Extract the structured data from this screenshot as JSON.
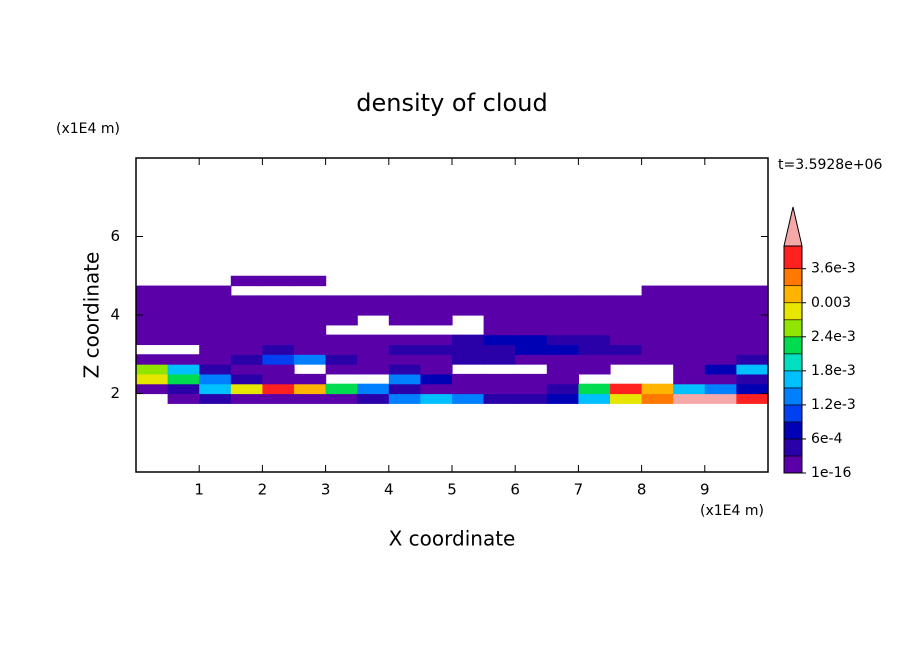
{
  "chart_data": {
    "type": "contour",
    "title": "density of cloud",
    "xlabel": "X coordinate",
    "ylabel": "Z coordinate",
    "xunit": "(x1E4 m)",
    "yunit": "(x1E4 m)",
    "annotation": "t=3.5928e+06",
    "xlim": [
      0,
      10
    ],
    "ylim": [
      0,
      8
    ],
    "xticks": [
      1,
      2,
      3,
      4,
      5,
      6,
      7,
      8,
      9
    ],
    "yticks": [
      2,
      4,
      6
    ],
    "x": [
      0.25,
      0.75,
      1.25,
      1.75,
      2.25,
      2.75,
      3.25,
      3.75,
      4.25,
      4.75,
      5.25,
      5.75,
      6.25,
      6.75,
      7.25,
      7.75,
      8.25,
      8.75,
      9.25,
      9.75
    ],
    "y": [
      1.875,
      2.125,
      2.375,
      2.625,
      2.875,
      3.125,
      3.375,
      3.625,
      3.875,
      4.125,
      4.375,
      4.625,
      4.875
    ],
    "z": [
      [
        0,
        0.0001,
        0.0004,
        0.0001,
        0.0001,
        0.0001,
        0.0001,
        0.0004,
        0.0013,
        0.0016,
        0.0013,
        0.0004,
        0.0004,
        0.0007,
        0.0016,
        0.0028,
        0.0034,
        0.0045,
        0.0045,
        0.0037
      ],
      [
        0.0001,
        0.0004,
        0.0016,
        0.0028,
        0.0037,
        0.0031,
        0.0022,
        0.0013,
        0.0004,
        0.0001,
        0.0001,
        0.0001,
        0.0001,
        0.0004,
        0.0022,
        0.0037,
        0.0031,
        0.0016,
        0.0013,
        0.0007
      ],
      [
        0.0028,
        0.0022,
        0.0013,
        0.0004,
        0.0001,
        0.0001,
        0,
        0,
        0.0013,
        0.0007,
        0.0001,
        0.0001,
        0.0001,
        0.0001,
        0,
        0,
        0,
        0.0001,
        0.0001,
        0.0004
      ],
      [
        0.0025,
        0.0016,
        0.0004,
        0.0001,
        0.0001,
        0,
        0.0001,
        0.0001,
        0.0004,
        0.0001,
        0,
        0,
        0,
        0.0001,
        0.0001,
        0,
        0,
        0.0001,
        0.0007,
        0.0016
      ],
      [
        0.0001,
        0.0001,
        0.0001,
        0.0004,
        0.001,
        0.0013,
        0.0004,
        0.0001,
        0.0001,
        0.0001,
        0.0004,
        0.0004,
        0.0001,
        0.0001,
        0.0001,
        0.0001,
        0.0001,
        0.0001,
        0.0001,
        0.0004
      ],
      [
        0,
        0,
        0.0001,
        0.0001,
        0.0004,
        0.0001,
        0.0001,
        0.0001,
        0.0004,
        0.0004,
        0.0004,
        0.0004,
        0.0007,
        0.0007,
        0.0004,
        0.0004,
        0.0001,
        0.0001,
        0.0001,
        0.0001
      ],
      [
        0.0001,
        0.0001,
        0.0001,
        0.0001,
        0.0001,
        0.0001,
        0.0001,
        0.0001,
        0.0001,
        0.0001,
        0.0004,
        0.0007,
        0.0007,
        0.0004,
        0.0004,
        0.0001,
        0.0001,
        0.0001,
        0.0001,
        0.0001
      ],
      [
        0.0001,
        0.0001,
        0.0001,
        0.0001,
        0.0001,
        0.0001,
        0,
        0,
        0,
        0,
        0,
        0.0001,
        0.0001,
        0.0001,
        0.0001,
        0.0001,
        0.0001,
        0.0001,
        0.0001,
        0.0001
      ],
      [
        0.0001,
        0.0001,
        0.0001,
        0.0001,
        0.0001,
        0.0001,
        0.0001,
        0,
        0.0001,
        0.0001,
        0,
        0.0001,
        0.0001,
        0.0001,
        0.0001,
        0.0001,
        0.0001,
        0.0001,
        0.0001,
        0.0001
      ],
      [
        0.0001,
        0.0001,
        0.0001,
        0.0001,
        0.0001,
        0.0001,
        0.0001,
        0.0001,
        0.0001,
        0.0001,
        0.0001,
        0.0001,
        0.0001,
        0.0001,
        0.0001,
        0.0001,
        0.0001,
        0.0001,
        0.0001,
        0.0001
      ],
      [
        0.0001,
        0.0001,
        0.0001,
        0.0001,
        0.0001,
        0.0001,
        0.0001,
        0.0001,
        0.0001,
        0.0001,
        0.0001,
        0.0001,
        0.0001,
        0.0001,
        0.0001,
        0.0001,
        0.0001,
        0.0001,
        0.0001,
        0.0001
      ],
      [
        0.0001,
        0.0001,
        0.0001,
        0,
        0,
        0,
        0,
        0,
        0,
        0,
        0,
        0,
        0,
        0,
        0,
        0,
        0.0001,
        0.0001,
        0.0001,
        0.0001
      ],
      [
        0,
        0,
        0,
        0.0001,
        0.0001,
        0.0001,
        0,
        0,
        0,
        0,
        0,
        0,
        0,
        0,
        0,
        0,
        0,
        0,
        0,
        0
      ]
    ],
    "levels": [
      1e-16,
      0.0003,
      0.0006,
      0.0009,
      0.0012,
      0.0015,
      0.0018,
      0.0021,
      0.0024,
      0.0027,
      0.003,
      0.0033,
      0.0036
    ],
    "colors": [
      "#5a00a8",
      "#2a00a8",
      "#0000b4",
      "#0040f0",
      "#0080ff",
      "#00c0ff",
      "#00e0c0",
      "#00dc50",
      "#90e600",
      "#e6e600",
      "#ffb400",
      "#ff7800",
      "#ff2020"
    ],
    "extend_color": "#f4a8a8",
    "clim": [
      1e-16,
      0.004
    ],
    "cticks": [
      1e-16,
      {
        "value": 0.0006,
        "label": "6e-4"
      },
      {
        "value": 0.0012,
        "label": "1.2e-3"
      },
      {
        "value": 0.0018,
        "label": "1.8e-3"
      },
      {
        "value": 0.0024,
        "label": "2.4e-3"
      },
      0.003,
      {
        "value": 0.0036,
        "label": "3.6e-3"
      }
    ]
  }
}
